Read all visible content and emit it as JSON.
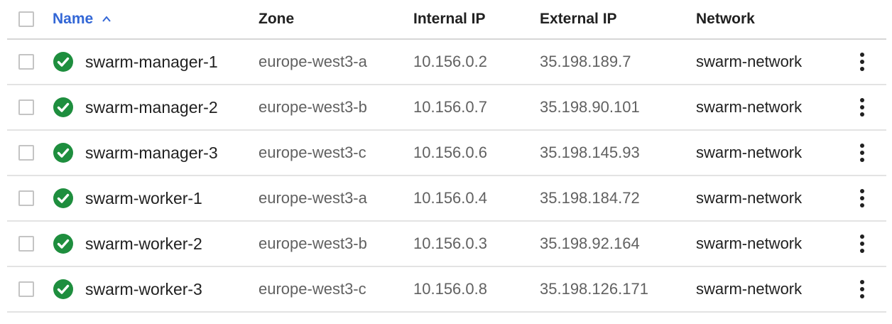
{
  "header": {
    "name": "Name",
    "zone": "Zone",
    "internal_ip": "Internal IP",
    "external_ip": "External IP",
    "network": "Network"
  },
  "colors": {
    "status_ok": "#1e8e3e",
    "sort_active": "#3367d6"
  },
  "rows": [
    {
      "name": "swarm-manager-1",
      "zone": "europe-west3-a",
      "internal_ip": "10.156.0.2",
      "external_ip": "35.198.189.7",
      "network": "swarm-network",
      "status_icon": "check-circle-icon"
    },
    {
      "name": "swarm-manager-2",
      "zone": "europe-west3-b",
      "internal_ip": "10.156.0.7",
      "external_ip": "35.198.90.101",
      "network": "swarm-network",
      "status_icon": "check-circle-icon"
    },
    {
      "name": "swarm-manager-3",
      "zone": "europe-west3-c",
      "internal_ip": "10.156.0.6",
      "external_ip": "35.198.145.93",
      "network": "swarm-network",
      "status_icon": "check-circle-icon"
    },
    {
      "name": "swarm-worker-1",
      "zone": "europe-west3-a",
      "internal_ip": "10.156.0.4",
      "external_ip": "35.198.184.72",
      "network": "swarm-network",
      "status_icon": "check-circle-icon"
    },
    {
      "name": "swarm-worker-2",
      "zone": "europe-west3-b",
      "internal_ip": "10.156.0.3",
      "external_ip": "35.198.92.164",
      "network": "swarm-network",
      "status_icon": "check-circle-icon"
    },
    {
      "name": "swarm-worker-3",
      "zone": "europe-west3-c",
      "internal_ip": "10.156.0.8",
      "external_ip": "35.198.126.171",
      "network": "swarm-network",
      "status_icon": "check-circle-icon"
    }
  ]
}
